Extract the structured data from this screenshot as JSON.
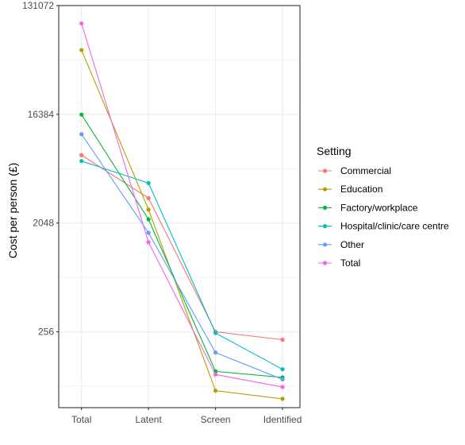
{
  "chart_data": {
    "type": "line",
    "title": "",
    "xlabel": "",
    "ylabel": "Cost per person (£)",
    "y_scale": "log2",
    "ylim": [
      60,
      131072
    ],
    "y_ticks": [
      256,
      2048,
      16384,
      131072
    ],
    "y_tick_labels": [
      "256",
      "2048",
      "16384",
      "131072"
    ],
    "categories": [
      "Total",
      "Latent",
      "Screen",
      "Identified"
    ],
    "grid": true,
    "legend": {
      "title": "Setting",
      "placement": "right"
    },
    "series": [
      {
        "name": "Commercial",
        "color": "#F8766D",
        "values": [
          7500,
          3300,
          256,
          220
        ]
      },
      {
        "name": "Education",
        "color": "#B79F00",
        "values": [
          56000,
          2650,
          83,
          71
        ]
      },
      {
        "name": "Factory/workplace",
        "color": "#00BA38",
        "values": [
          16300,
          2200,
          120,
          107
        ]
      },
      {
        "name": "Hospital/clinic/care centre",
        "color": "#00BFC4",
        "values": [
          6700,
          4400,
          250,
          125
        ]
      },
      {
        "name": "Other",
        "color": "#619CFF",
        "values": [
          11200,
          1700,
          172,
          103
        ]
      },
      {
        "name": "Total",
        "color": "#F564E3",
        "values": [
          93000,
          1420,
          113,
          89
        ]
      }
    ]
  }
}
